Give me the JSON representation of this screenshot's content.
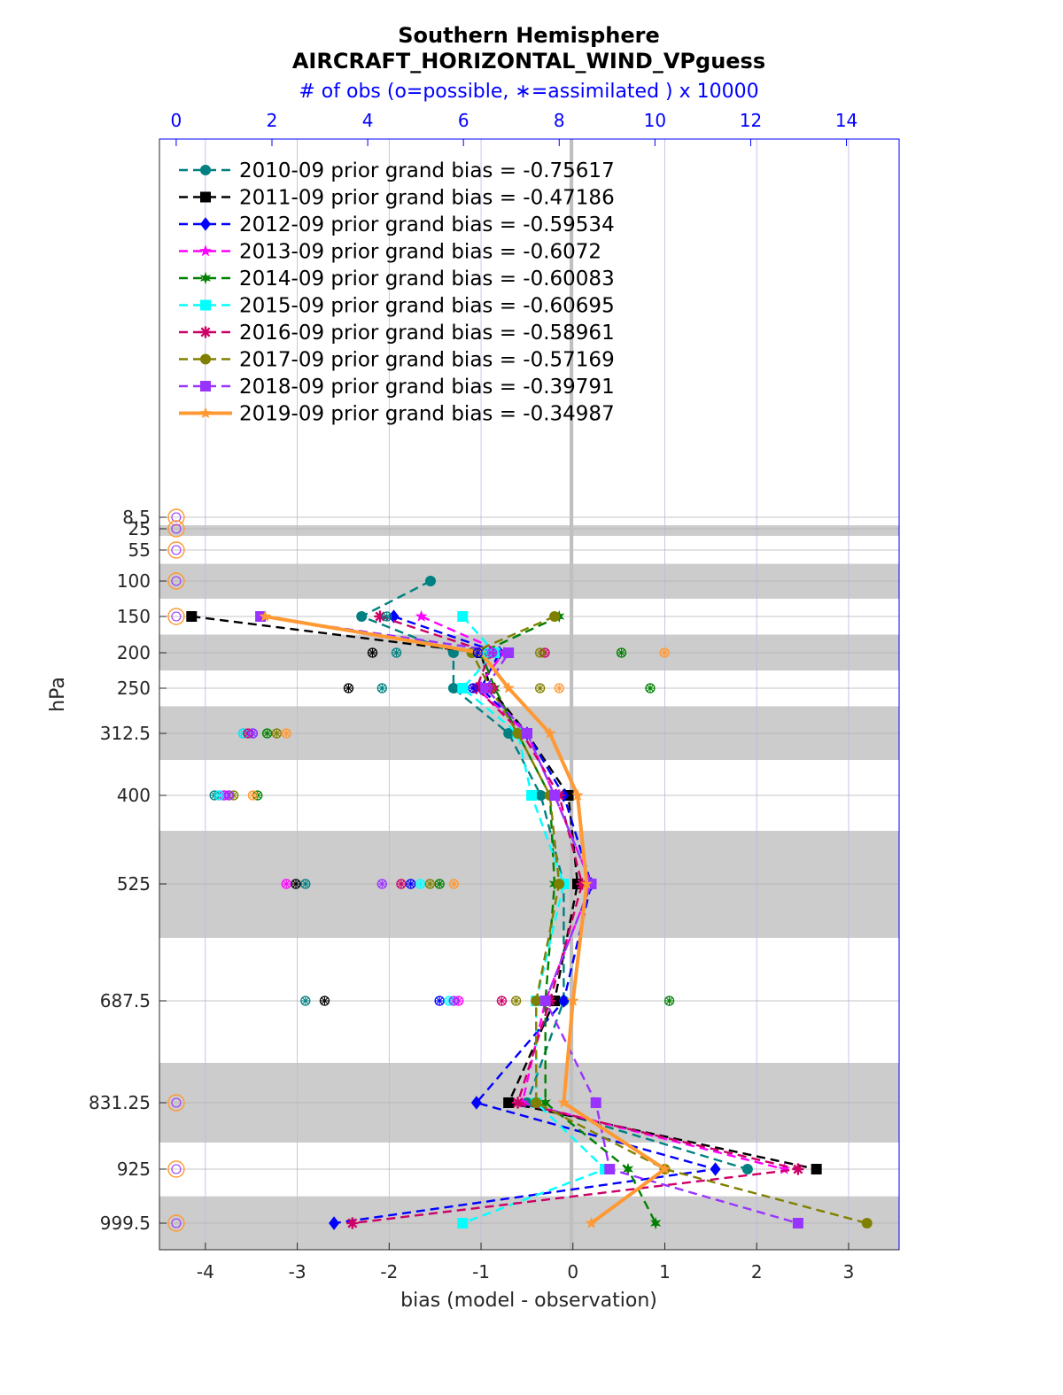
{
  "chart_data": {
    "type": "line",
    "title": "Southern Hemisphere",
    "subtitle": "AIRCRAFT_HORIZONTAL_WIND_VPguess",
    "top_axis_label": "# of obs (o=possible, ∗=assimilated ) x 10000",
    "xlabel": "bias (model - observation)",
    "ylabel": "hPa",
    "xlim": [
      -4.5,
      3.55
    ],
    "top_xlim": [
      -0.35,
      15.1
    ],
    "x_ticks": [
      "-4",
      "-3",
      "-2",
      "-1",
      "0",
      "1",
      "2",
      "3"
    ],
    "top_ticks": [
      "0",
      "2",
      "4",
      "6",
      "8",
      "10",
      "12",
      "14"
    ],
    "levels": [
      8.5,
      25,
      55,
      100,
      150,
      200,
      250,
      312.5,
      400,
      525,
      687.5,
      831.25,
      925,
      999.5
    ],
    "level_labels": [
      "8.5",
      "25",
      "55",
      "100",
      "150",
      "200",
      "250",
      "312.5",
      "400",
      "525",
      "687.5",
      "831.25",
      "925",
      "999.5"
    ],
    "shaded_bands": [
      [
        20,
        35
      ],
      [
        75,
        125
      ],
      [
        175,
        225
      ],
      [
        275,
        350
      ],
      [
        450,
        600
      ],
      [
        775,
        887.5
      ],
      [
        962.5,
        1037
      ]
    ],
    "grid": true,
    "legend_position": "top-left",
    "series": [
      {
        "name": "2010-09 prior grand bias = -0.75617",
        "color": "#008080",
        "marker": "circle",
        "dashed": true,
        "values": [
          null,
          null,
          null,
          -1.55,
          -2.3,
          -1.3,
          -1.3,
          -0.7,
          -0.35,
          -0.1,
          -0.1,
          -0.5,
          1.9,
          null
        ],
        "obs": [
          null,
          null,
          null,
          null,
          4.4,
          4.6,
          4.3,
          1.4,
          0.8,
          2.7,
          2.7,
          null,
          null,
          null
        ]
      },
      {
        "name": "2011-09 prior grand bias = -0.47186",
        "color": "#000000",
        "marker": "square",
        "dashed": true,
        "values": [
          null,
          null,
          null,
          null,
          -4.15,
          -1.0,
          -0.9,
          -0.5,
          -0.05,
          0.05,
          -0.2,
          -0.7,
          2.65,
          null
        ],
        "obs": [
          null,
          null,
          null,
          null,
          null,
          4.1,
          3.6,
          1.4,
          0.9,
          2.5,
          3.1,
          null,
          null,
          null
        ]
      },
      {
        "name": "2012-09 prior grand bias = -0.59534",
        "color": "#0000ff",
        "marker": "diamond",
        "dashed": true,
        "values": [
          null,
          null,
          null,
          null,
          -1.95,
          -0.8,
          -1.0,
          -0.5,
          -0.1,
          0.2,
          -0.1,
          -1.05,
          1.55,
          -2.6
        ],
        "obs": [
          null,
          null,
          null,
          null,
          null,
          6.3,
          6.2,
          1.6,
          1.0,
          4.9,
          5.5,
          null,
          null,
          null
        ]
      },
      {
        "name": "2013-09 prior grand bias = -0.6072",
        "color": "#ff00ff",
        "marker": "star",
        "dashed": true,
        "values": [
          null,
          null,
          null,
          null,
          -1.65,
          -0.75,
          -1.05,
          -0.5,
          -0.2,
          0.2,
          -0.3,
          -0.55,
          2.3,
          null
        ],
        "obs": [
          null,
          null,
          null,
          null,
          null,
          6.6,
          6.5,
          1.4,
          1.0,
          2.3,
          5.9,
          null,
          null,
          null
        ]
      },
      {
        "name": "2014-09 prior grand bias = -0.60083",
        "color": "#008000",
        "marker": "hexagram",
        "dashed": true,
        "values": [
          null,
          null,
          null,
          null,
          -0.15,
          -1.0,
          -0.85,
          -0.6,
          -0.25,
          -0.2,
          -0.3,
          -0.3,
          0.6,
          0.9
        ],
        "obs": [
          null,
          null,
          null,
          null,
          null,
          9.3,
          9.9,
          1.9,
          1.7,
          5.5,
          10.3,
          null,
          null,
          null
        ]
      },
      {
        "name": "2015-09 prior grand bias = -0.60695",
        "color": "#00ffff",
        "marker": "square",
        "dashed": true,
        "values": [
          null,
          null,
          null,
          null,
          -1.2,
          -0.85,
          -1.2,
          -0.6,
          -0.45,
          -0.1,
          -0.4,
          -0.4,
          0.35,
          -1.2
        ],
        "obs": [
          null,
          null,
          null,
          null,
          null,
          6.5,
          6.0,
          1.4,
          0.9,
          5.1,
          5.7,
          null,
          null,
          null
        ]
      },
      {
        "name": "2016-09 prior grand bias = -0.58961",
        "color": "#cc0066",
        "marker": "asterisk",
        "dashed": true,
        "values": [
          null,
          null,
          null,
          null,
          -2.1,
          -0.9,
          -1.05,
          -0.55,
          -0.15,
          0.1,
          -0.25,
          -0.6,
          2.45,
          -2.4
        ],
        "obs": [
          null,
          null,
          null,
          null,
          null,
          7.7,
          6.6,
          1.5,
          1.1,
          4.7,
          6.8,
          null,
          null,
          null
        ]
      },
      {
        "name": "2017-09 prior grand bias = -0.57169",
        "color": "#808000",
        "marker": "circle",
        "dashed": true,
        "values": [
          null,
          null,
          null,
          null,
          -0.2,
          -1.1,
          -0.9,
          -0.6,
          -0.25,
          -0.15,
          -0.4,
          -0.4,
          1.0,
          3.2
        ],
        "obs": [
          null,
          null,
          null,
          null,
          null,
          7.6,
          7.6,
          2.1,
          1.2,
          5.3,
          7.1,
          null,
          null,
          null
        ]
      },
      {
        "name": "2018-09 prior grand bias = -0.39791",
        "color": "#9933ff",
        "marker": "square",
        "dashed": true,
        "values": [
          null,
          null,
          null,
          null,
          -3.4,
          -0.7,
          -0.95,
          -0.5,
          -0.2,
          0.2,
          -0.3,
          0.25,
          0.4,
          2.45
        ],
        "obs": [
          null,
          null,
          null,
          null,
          null,
          6.6,
          6.5,
          1.6,
          1.1,
          4.3,
          5.8,
          null,
          null,
          null
        ]
      },
      {
        "name": "2019-09 prior grand bias = -0.34987",
        "color": "#ff9933",
        "marker": "pentagram",
        "dashed": false,
        "values": [
          null,
          null,
          null,
          null,
          -3.35,
          -1.0,
          -0.7,
          -0.25,
          0.05,
          0.15,
          0.0,
          -0.1,
          1.0,
          0.2
        ],
        "obs": [
          null,
          null,
          null,
          null,
          null,
          10.2,
          8.0,
          2.3,
          1.6,
          5.8,
          null,
          null,
          null,
          null
        ]
      }
    ]
  }
}
